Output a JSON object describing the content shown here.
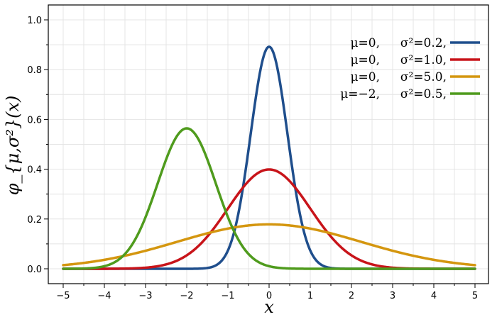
{
  "chart_data": {
    "type": "line",
    "title": "",
    "xlabel": "x",
    "ylabel": "φ_{μ,σ²}(x)",
    "xlim": [
      -5,
      5
    ],
    "ylim": [
      0,
      1.0
    ],
    "x_ticks": [
      -5,
      -4,
      -3,
      -2,
      -1,
      0,
      1,
      2,
      3,
      4,
      5
    ],
    "x_tick_labels": [
      "−5",
      "−4",
      "−3",
      "−2",
      "−1",
      "0",
      "1",
      "2",
      "3",
      "4",
      "5"
    ],
    "y_ticks": [
      0,
      0.2,
      0.4,
      0.6,
      0.8,
      1.0
    ],
    "y_tick_labels": [
      "0.0",
      "0.2",
      "0.4",
      "0.6",
      "0.8",
      "1.0"
    ],
    "grid": true,
    "legend_position": "top-right",
    "series": [
      {
        "mu": 0,
        "sigma2": 0.2,
        "legend_mu": "μ=0,",
        "legend_sigma": "σ²=0.2,",
        "color": "#1f4e8c"
      },
      {
        "mu": 0,
        "sigma2": 1.0,
        "legend_mu": "μ=0,",
        "legend_sigma": "σ²=1.0,",
        "color": "#c8141a"
      },
      {
        "mu": 0,
        "sigma2": 5.0,
        "legend_mu": "μ=0,",
        "legend_sigma": "σ²=5.0,",
        "color": "#d4960f"
      },
      {
        "mu": -2,
        "sigma2": 0.5,
        "legend_mu": "μ=−2,",
        "legend_sigma": "σ²=0.5,",
        "color": "#4f9b1d"
      }
    ]
  }
}
